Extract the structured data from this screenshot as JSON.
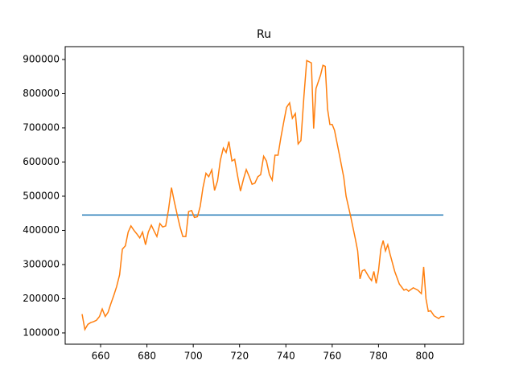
{
  "chart_data": {
    "type": "line",
    "title": "Ru",
    "xlim": [
      644.7,
      816.7
    ],
    "ylim": [
      67000,
      937600
    ],
    "xticks": [
      660,
      680,
      700,
      720,
      740,
      760,
      780,
      800
    ],
    "yticks": [
      100000,
      200000,
      300000,
      400000,
      500000,
      600000,
      700000,
      800000,
      900000
    ],
    "series": [
      {
        "color": "#1f77b4",
        "x": [
          652,
          808
        ],
        "values": [
          445000,
          445000
        ]
      },
      {
        "color": "#ff7f0e",
        "x": [
          652,
          653.2,
          654.5,
          655.7,
          657,
          658.2,
          659.5,
          660.7,
          662,
          663.2,
          664.4,
          665.7,
          666.9,
          668.2,
          669.4,
          670.7,
          671.9,
          673.1,
          674.4,
          675.6,
          676.9,
          678.1,
          679.4,
          680.6,
          681.9,
          683.1,
          684.3,
          685.6,
          686.8,
          688.1,
          689.3,
          690.6,
          691.8,
          693.1,
          694.3,
          695.5,
          696.8,
          698,
          699.3,
          700.5,
          701.8,
          703,
          704.2,
          705.5,
          706.7,
          708,
          709.2,
          710.5,
          711.7,
          713,
          714.2,
          715.4,
          716.7,
          717.9,
          719.2,
          720.4,
          721.7,
          722.9,
          724.2,
          725.4,
          726.6,
          727.9,
          729.1,
          730.4,
          731.6,
          732.9,
          734.1,
          735.3,
          736.6,
          737.8,
          739.1,
          740.3,
          741.6,
          742.8,
          744.1,
          745.3,
          746.5,
          747.8,
          749,
          751,
          752,
          753,
          755,
          756,
          757,
          758,
          759,
          760,
          761,
          763,
          765,
          766,
          768,
          770,
          771,
          772,
          773,
          774,
          776,
          777,
          778,
          779,
          780,
          781,
          782,
          783,
          784,
          785,
          787,
          789,
          791,
          792,
          793,
          795,
          797,
          798.5,
          799.5,
          800.5,
          801.5,
          802.5,
          804,
          806,
          807,
          808.5
        ],
        "values": [
          155000,
          110000,
          125000,
          130000,
          133000,
          137000,
          148000,
          170000,
          148000,
          160000,
          185000,
          210000,
          235000,
          270000,
          345000,
          355000,
          395000,
          413000,
          400000,
          390000,
          378000,
          395000,
          358000,
          395000,
          415000,
          398000,
          382000,
          420000,
          410000,
          413000,
          460000,
          525000,
          485000,
          445000,
          410000,
          382000,
          382000,
          455000,
          458000,
          438000,
          440000,
          470000,
          525000,
          567000,
          557000,
          577000,
          517000,
          545000,
          605000,
          641000,
          628000,
          660000,
          603000,
          608000,
          558000,
          515000,
          550000,
          578000,
          557000,
          535000,
          538000,
          557000,
          563000,
          617000,
          603000,
          563000,
          547000,
          620000,
          620000,
          670000,
          718000,
          760000,
          773000,
          728000,
          742000,
          653000,
          663000,
          793000,
          897000,
          890000,
          698000,
          815000,
          855000,
          883000,
          880000,
          755000,
          710000,
          710000,
          693000,
          625000,
          555000,
          500000,
          440000,
          375000,
          340000,
          258000,
          282000,
          285000,
          262000,
          253000,
          280000,
          245000,
          282000,
          345000,
          370000,
          340000,
          358000,
          330000,
          280000,
          243000,
          225000,
          228000,
          222000,
          232000,
          225000,
          215000,
          293000,
          200000,
          163000,
          165000,
          150000,
          142000,
          148000,
          148000
        ]
      }
    ]
  }
}
